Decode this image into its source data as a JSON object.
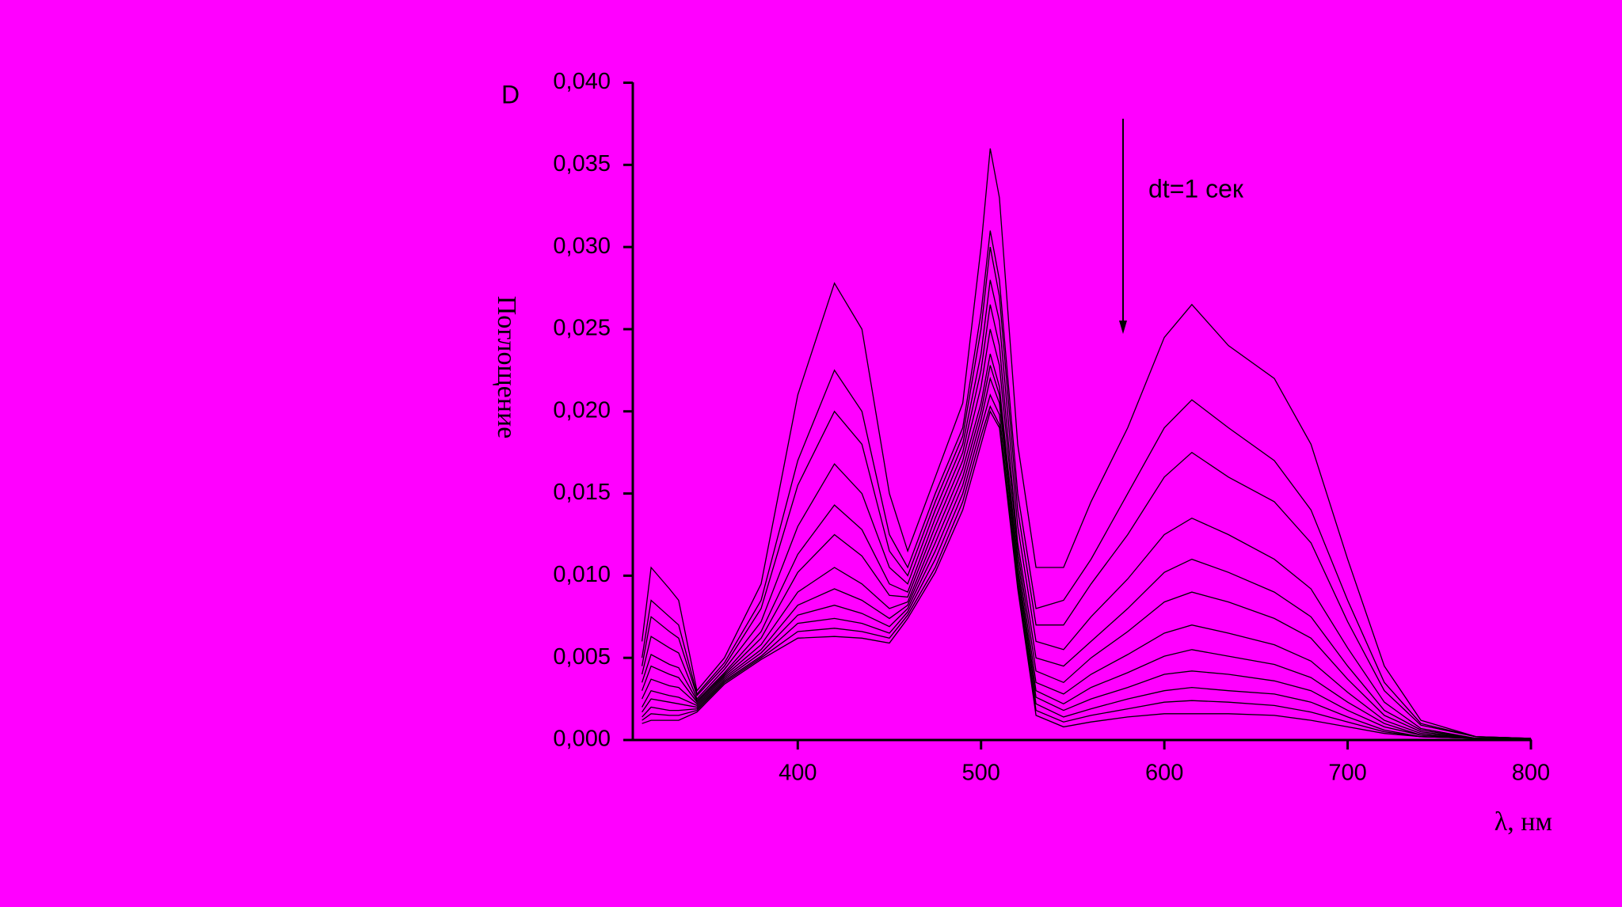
{
  "chart_data": {
    "type": "line",
    "y_label": "D",
    "y_title": "Поглощение",
    "x_label": "λ, нм",
    "annotation": "dt=1 сек",
    "color": "#000000",
    "xlim": [
      310,
      800
    ],
    "ylim": [
      0,
      0.04
    ],
    "xticks": [
      400,
      500,
      600,
      700,
      800
    ],
    "yticks": [
      {
        "value": 0,
        "label": "0,000"
      },
      {
        "value": 0.005,
        "label": "0,005"
      },
      {
        "value": 0.01,
        "label": "0,010"
      },
      {
        "value": 0.015,
        "label": "0,015"
      },
      {
        "value": 0.02,
        "label": "0,020"
      },
      {
        "value": 0.025,
        "label": "0,025"
      },
      {
        "value": 0.03,
        "label": "0,030"
      },
      {
        "value": 0.035,
        "label": "0,035"
      },
      {
        "value": 0.04,
        "label": "0,040"
      }
    ],
    "x": [
      315,
      320,
      330,
      335,
      345,
      360,
      380,
      400,
      420,
      435,
      450,
      460,
      475,
      490,
      500,
      505,
      510,
      520,
      530,
      545,
      560,
      580,
      600,
      615,
      635,
      660,
      680,
      700,
      720,
      740,
      770,
      800
    ],
    "series": [
      {
        "values": [
          0.006,
          0.0105,
          0.0092,
          0.0085,
          0.003,
          0.005,
          0.0095,
          0.021,
          0.0278,
          0.025,
          0.015,
          0.0115,
          0.016,
          0.0205,
          0.03,
          0.036,
          0.033,
          0.018,
          0.0105,
          0.0105,
          0.0145,
          0.019,
          0.0245,
          0.0265,
          0.024,
          0.022,
          0.018,
          0.011,
          0.0045,
          0.0012,
          0.0002,
          0.0001
        ]
      },
      {
        "values": [
          0.005,
          0.0085,
          0.0075,
          0.007,
          0.0028,
          0.0047,
          0.0085,
          0.017,
          0.0225,
          0.02,
          0.0125,
          0.0105,
          0.015,
          0.019,
          0.026,
          0.031,
          0.028,
          0.015,
          0.008,
          0.0085,
          0.011,
          0.015,
          0.019,
          0.0207,
          0.019,
          0.017,
          0.014,
          0.0085,
          0.0035,
          0.001,
          0.0002,
          0.0001
        ]
      },
      {
        "values": [
          0.0045,
          0.0075,
          0.0066,
          0.0062,
          0.0027,
          0.0045,
          0.008,
          0.0155,
          0.02,
          0.018,
          0.0115,
          0.01,
          0.0145,
          0.0185,
          0.025,
          0.03,
          0.027,
          0.014,
          0.007,
          0.007,
          0.0095,
          0.0125,
          0.016,
          0.0175,
          0.016,
          0.0145,
          0.012,
          0.0072,
          0.003,
          0.0009,
          0.0002,
          0.0001
        ]
      },
      {
        "values": [
          0.004,
          0.0063,
          0.0056,
          0.0053,
          0.0025,
          0.0043,
          0.0072,
          0.013,
          0.0168,
          0.015,
          0.0105,
          0.0095,
          0.014,
          0.018,
          0.0235,
          0.028,
          0.0255,
          0.013,
          0.006,
          0.0055,
          0.0075,
          0.0098,
          0.0125,
          0.0135,
          0.0125,
          0.011,
          0.0092,
          0.0056,
          0.0023,
          0.0007,
          0.0001,
          0.0001
        ]
      },
      {
        "values": [
          0.0035,
          0.0052,
          0.0046,
          0.0044,
          0.0024,
          0.0041,
          0.0066,
          0.0113,
          0.0143,
          0.0128,
          0.0095,
          0.009,
          0.0135,
          0.0175,
          0.0225,
          0.0265,
          0.024,
          0.012,
          0.005,
          0.0045,
          0.006,
          0.008,
          0.0102,
          0.011,
          0.0102,
          0.009,
          0.0075,
          0.0045,
          0.0018,
          0.0006,
          0.0001,
          0.0001
        ]
      },
      {
        "values": [
          0.003,
          0.0045,
          0.004,
          0.0038,
          0.0023,
          0.004,
          0.0062,
          0.0102,
          0.0125,
          0.0112,
          0.0088,
          0.0087,
          0.013,
          0.017,
          0.0215,
          0.025,
          0.0228,
          0.0115,
          0.0042,
          0.0035,
          0.005,
          0.0066,
          0.0084,
          0.009,
          0.0084,
          0.0074,
          0.0062,
          0.0037,
          0.0015,
          0.0005,
          0.0001,
          0.0001
        ]
      },
      {
        "values": [
          0.0025,
          0.0037,
          0.0033,
          0.0032,
          0.0022,
          0.0039,
          0.0058,
          0.009,
          0.0105,
          0.0095,
          0.008,
          0.0084,
          0.0125,
          0.0165,
          0.0205,
          0.0235,
          0.0215,
          0.011,
          0.0035,
          0.0028,
          0.004,
          0.0052,
          0.0065,
          0.007,
          0.0065,
          0.0058,
          0.0048,
          0.0029,
          0.0012,
          0.0004,
          0.0001,
          0
        ]
      },
      {
        "values": [
          0.002,
          0.003,
          0.0027,
          0.0026,
          0.0021,
          0.0038,
          0.0055,
          0.0082,
          0.0092,
          0.0085,
          0.0074,
          0.0082,
          0.012,
          0.016,
          0.02,
          0.0228,
          0.021,
          0.0105,
          0.003,
          0.0022,
          0.0032,
          0.0041,
          0.0051,
          0.0055,
          0.0051,
          0.0046,
          0.0038,
          0.0023,
          0.001,
          0.0003,
          0.0001,
          0
        ]
      },
      {
        "values": [
          0.0017,
          0.0025,
          0.0023,
          0.0022,
          0.002,
          0.0037,
          0.0053,
          0.0076,
          0.0082,
          0.0077,
          0.0069,
          0.008,
          0.0115,
          0.0155,
          0.0195,
          0.022,
          0.0205,
          0.0102,
          0.0026,
          0.0018,
          0.0025,
          0.0032,
          0.004,
          0.0042,
          0.004,
          0.0036,
          0.003,
          0.0018,
          0.0008,
          0.0003,
          0.0001,
          0
        ]
      },
      {
        "values": [
          0.0014,
          0.002,
          0.0018,
          0.0018,
          0.0019,
          0.0036,
          0.0051,
          0.0071,
          0.0074,
          0.0071,
          0.0065,
          0.0078,
          0.011,
          0.015,
          0.019,
          0.021,
          0.0198,
          0.0098,
          0.0022,
          0.0014,
          0.0019,
          0.0025,
          0.003,
          0.0032,
          0.003,
          0.0028,
          0.0023,
          0.0014,
          0.0006,
          0.0002,
          0.0001,
          0
        ]
      },
      {
        "values": [
          0.0012,
          0.0016,
          0.0015,
          0.0015,
          0.0018,
          0.0035,
          0.005,
          0.0066,
          0.0068,
          0.0066,
          0.0062,
          0.0076,
          0.0105,
          0.0145,
          0.0185,
          0.0203,
          0.0192,
          0.0095,
          0.0018,
          0.0011,
          0.0015,
          0.0019,
          0.0023,
          0.0024,
          0.0023,
          0.0021,
          0.0017,
          0.0011,
          0.0005,
          0.0002,
          0.0001,
          0
        ]
      },
      {
        "values": [
          0.001,
          0.0012,
          0.0012,
          0.0012,
          0.0017,
          0.0034,
          0.0049,
          0.0062,
          0.0063,
          0.0062,
          0.0059,
          0.0074,
          0.0102,
          0.014,
          0.018,
          0.02,
          0.019,
          0.0092,
          0.0015,
          0.0008,
          0.0011,
          0.0014,
          0.0016,
          0.0016,
          0.0016,
          0.0015,
          0.0012,
          0.0008,
          0.0004,
          0.0002,
          0.0001,
          0
        ]
      }
    ]
  }
}
